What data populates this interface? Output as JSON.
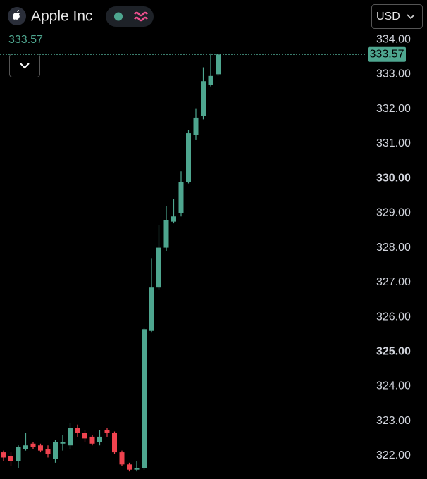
{
  "chart_data": {
    "type": "candlestick",
    "title": "Apple Inc",
    "currency": "USD",
    "last_price": 333.57,
    "up_color": "#4ea68f",
    "down_color": "#f0434f",
    "ylim": [
      321.33,
      335.14
    ],
    "yticks": [
      {
        "value": 322,
        "label": "322.00"
      },
      {
        "value": 323,
        "label": "323.00"
      },
      {
        "value": 324,
        "label": "324.00"
      },
      {
        "value": 325,
        "label": "325.00"
      },
      {
        "value": 326,
        "label": "326.00"
      },
      {
        "value": 327,
        "label": "327.00"
      },
      {
        "value": 328,
        "label": "328.00"
      },
      {
        "value": 329,
        "label": "329.00"
      },
      {
        "value": 330,
        "label": "330.00"
      },
      {
        "value": 331,
        "label": "331.00"
      },
      {
        "value": 332,
        "label": "332.00"
      },
      {
        "value": 333,
        "label": "333.00"
      },
      {
        "value": 334,
        "label": "334.00"
      }
    ],
    "open": [
      322.1,
      322.0,
      321.85,
      322.2,
      322.35,
      322.3,
      322.2,
      321.9,
      322.35,
      322.3,
      322.8,
      322.65,
      322.55,
      322.4,
      322.75,
      322.65,
      322.1,
      321.75,
      321.6,
      321.65,
      325.6,
      326.85,
      328.0,
      328.75,
      329.0,
      329.9,
      331.25,
      331.8,
      332.7,
      333.0
    ],
    "high": [
      322.15,
      322.1,
      322.3,
      322.65,
      322.4,
      322.35,
      322.3,
      322.45,
      322.6,
      322.95,
      322.9,
      322.75,
      322.6,
      322.75,
      322.8,
      322.7,
      322.15,
      321.8,
      321.85,
      325.7,
      327.7,
      328.65,
      329.2,
      329.4,
      330.2,
      331.4,
      332.0,
      333.2,
      333.6,
      333.57
    ],
    "low": [
      321.85,
      321.7,
      321.65,
      322.15,
      322.2,
      322.1,
      321.95,
      321.8,
      322.15,
      322.2,
      322.55,
      322.4,
      322.3,
      322.3,
      322.55,
      322.05,
      321.7,
      321.55,
      321.55,
      321.6,
      325.55,
      326.8,
      327.9,
      328.7,
      328.9,
      329.85,
      331.1,
      331.7,
      332.65,
      332.95
    ],
    "close": [
      321.95,
      321.85,
      322.25,
      322.3,
      322.25,
      322.15,
      322.05,
      322.4,
      322.4,
      322.8,
      322.65,
      322.5,
      322.35,
      322.55,
      322.65,
      322.1,
      321.75,
      321.6,
      321.65,
      325.65,
      326.85,
      328.0,
      328.8,
      328.9,
      329.9,
      331.3,
      331.75,
      332.8,
      332.95,
      333.57
    ]
  }
}
